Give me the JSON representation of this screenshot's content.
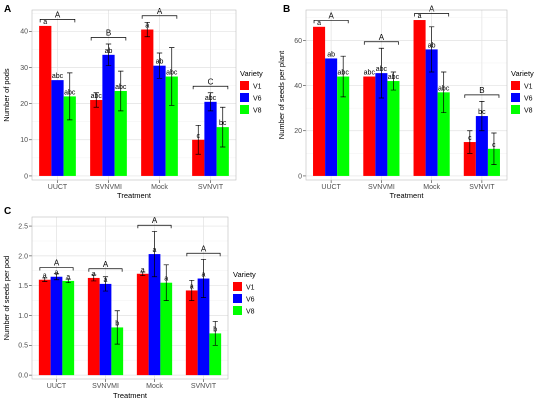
{
  "chart_data": [
    {
      "panel_label": "A",
      "type": "bar",
      "categories": [
        "UUCT",
        "SVNVMI",
        "Mock",
        "SVNVIT"
      ],
      "xlabel": "Treatment",
      "ylabel": "Number of pods",
      "ylim": [
        0,
        45
      ],
      "yticks": [
        "0",
        "10",
        "20",
        "30",
        "40"
      ],
      "grid": true,
      "legend": "right",
      "legend_title": "Variety",
      "series": [
        {
          "name": "V1",
          "color": "#FF0000",
          "values": [
            41.5,
            21,
            40.5,
            10
          ],
          "errors": [
            0,
            2,
            2,
            4
          ],
          "letters": [
            "a",
            "abc",
            "a",
            "c"
          ]
        },
        {
          "name": "V6",
          "color": "#0000FF",
          "values": [
            26.5,
            33.5,
            30.5,
            20.5
          ],
          "errors": [
            0,
            3,
            3.5,
            2.5
          ],
          "letters": [
            "abc",
            "ab",
            "ab",
            "abc"
          ]
        },
        {
          "name": "V8",
          "color": "#00FF00",
          "values": [
            22,
            23.5,
            27.5,
            13.5
          ],
          "errors": [
            6.5,
            5.5,
            8,
            5.5
          ],
          "letters": [
            "abc",
            "abc",
            "abc",
            "bc"
          ]
        }
      ],
      "group_letters": [
        "A",
        "B",
        "A",
        "C"
      ]
    },
    {
      "panel_label": "B",
      "type": "bar",
      "categories": [
        "UUCT",
        "SVNVMI",
        "Mock",
        "SVNVIT"
      ],
      "xlabel": "Treatment",
      "ylabel": "Number of seeds per plant",
      "ylim": [
        0,
        72
      ],
      "yticks": [
        "0",
        "20",
        "40",
        "60"
      ],
      "grid": true,
      "legend": "right",
      "legend_title": "Variety",
      "series": [
        {
          "name": "V1",
          "color": "#FF0000",
          "values": [
            66,
            44,
            69,
            15
          ],
          "errors": [
            0,
            0,
            0,
            5
          ],
          "letters": [
            "a",
            "abc",
            "a",
            "c"
          ]
        },
        {
          "name": "V6",
          "color": "#0000FF",
          "values": [
            52,
            45.5,
            56,
            26.5
          ],
          "errors": [
            0,
            11,
            10,
            6.5
          ],
          "letters": [
            "ab",
            "abc",
            "ab",
            "bc"
          ]
        },
        {
          "name": "V8",
          "color": "#00FF00",
          "values": [
            44,
            42,
            37,
            12
          ],
          "errors": [
            9,
            4,
            9,
            7
          ],
          "letters": [
            "abc",
            "abc",
            "abc",
            "c"
          ]
        }
      ],
      "group_letters": [
        "A",
        "A",
        "A",
        "B"
      ]
    },
    {
      "panel_label": "C",
      "type": "bar",
      "categories": [
        "UUCT",
        "SVNVMI",
        "Mock",
        "SVNVIT"
      ],
      "xlabel": "Treatment",
      "ylabel": "Number of seeds per pod",
      "ylim": [
        0,
        2.6
      ],
      "yticks": [
        "0.0",
        "0.5",
        "1.0",
        "1.5",
        "2.0",
        "2.5"
      ],
      "grid": true,
      "legend": "right",
      "legend_title": "Variety",
      "series": [
        {
          "name": "V1",
          "color": "#FF0000",
          "values": [
            1.6,
            1.63,
            1.7,
            1.42
          ],
          "errors": [
            0.03,
            0.05,
            0.03,
            0.17
          ],
          "letters": [
            "a",
            "a",
            "a",
            "a"
          ]
        },
        {
          "name": "V6",
          "color": "#0000FF",
          "values": [
            1.65,
            1.53,
            2.03,
            1.62
          ],
          "errors": [
            0.05,
            0.12,
            0.38,
            0.32
          ],
          "letters": [
            "a",
            "a",
            "a",
            "a"
          ]
        },
        {
          "name": "V8",
          "color": "#00FF00",
          "values": [
            1.58,
            0.8,
            1.55,
            0.7
          ],
          "errors": [
            0.03,
            0.28,
            0.3,
            0.2
          ],
          "letters": [
            "a",
            "b",
            "a",
            "b"
          ]
        }
      ],
      "group_letters": [
        "A",
        "A",
        "A",
        "A"
      ]
    }
  ]
}
